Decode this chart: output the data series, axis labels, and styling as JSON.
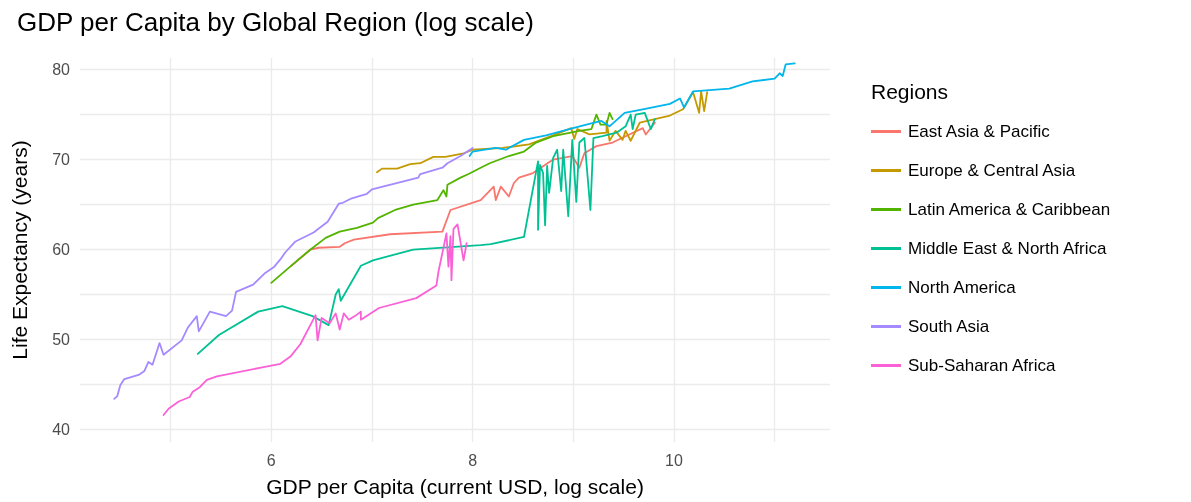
{
  "chart_data": {
    "type": "line",
    "title": "GDP per Capita by Global Region (log scale)",
    "xlabel": "GDP per Capita (current USD, log scale)",
    "ylabel": "Life Expectancy (years)",
    "legend_title": "Regions",
    "legend": "right",
    "grid": true,
    "marker": "none",
    "line_style": "solid",
    "xlim": [
      4.1,
      11.55
    ],
    "ylim": [
      38.6,
      81.3
    ],
    "xticks": [
      {
        "value": 5,
        "label": null
      },
      6,
      {
        "value": 7,
        "label": null
      },
      8,
      {
        "value": 9,
        "label": null
      },
      10,
      {
        "value": 11,
        "label": null
      }
    ],
    "yticks": [
      40,
      {
        "value": 45,
        "label": null
      },
      50,
      {
        "value": 55,
        "label": null
      },
      60,
      {
        "value": 65,
        "label": null
      },
      70,
      {
        "value": 75,
        "label": null
      },
      80
    ],
    "series": [
      {
        "name": "East Asia & Pacific",
        "color": "#f8766d",
        "x": [
          6.2,
          6.39,
          6.47,
          6.68,
          6.73,
          6.82,
          7.18,
          7.7,
          7.78,
          8.08,
          8.21,
          8.23,
          8.28,
          8.36,
          8.41,
          8.46,
          8.6,
          8.8,
          8.99,
          9.06,
          9.11,
          9.23,
          9.39,
          9.52,
          9.69,
          9.72,
          9.81
        ],
        "values": [
          58.2,
          60.0,
          60.2,
          60.3,
          60.7,
          61.1,
          61.7,
          62.0,
          64.4,
          65.5,
          67.0,
          65.5,
          67.0,
          65.9,
          67.4,
          68.0,
          68.5,
          70.0,
          70.4,
          69.1,
          70.7,
          71.5,
          71.9,
          72.6,
          73.5,
          72.8,
          74.1
        ]
      },
      {
        "name": "Europe & Central Asia",
        "color": "#c49a00",
        "x": [
          7.05,
          7.1,
          7.25,
          7.38,
          7.48,
          7.61,
          7.73,
          7.91,
          8.0,
          8.3,
          8.56,
          8.8,
          8.98,
          9.01,
          9.04,
          9.16,
          9.33,
          9.33,
          9.36,
          9.42,
          9.49,
          9.52,
          9.57,
          9.66,
          9.96,
          10.09,
          10.19,
          10.25,
          10.27,
          10.3,
          10.33
        ],
        "values": [
          68.6,
          69.0,
          69.0,
          69.5,
          69.6,
          70.3,
          70.3,
          70.7,
          71.1,
          71.3,
          71.7,
          72.7,
          73.5,
          72.3,
          73.4,
          72.8,
          73.0,
          74.3,
          72.1,
          73.2,
          72.2,
          73.2,
          72.1,
          74.1,
          74.9,
          75.6,
          77.5,
          75.2,
          77.6,
          75.4,
          77.5
        ]
      },
      {
        "name": "Latin America & Caribbean",
        "color": "#53b400",
        "x": [
          6.0,
          6.26,
          6.39,
          6.54,
          6.68,
          6.85,
          7.01,
          7.06,
          7.23,
          7.41,
          7.65,
          7.71,
          7.74,
          7.75,
          7.88,
          7.96,
          8.08,
          8.17,
          8.36,
          8.51,
          8.63,
          8.8,
          9.06,
          9.18,
          9.23,
          9.27,
          9.33,
          9.36,
          9.39
        ],
        "values": [
          56.3,
          58.8,
          60.0,
          61.3,
          62.0,
          62.4,
          63.0,
          63.5,
          64.4,
          65.0,
          65.5,
          66.6,
          65.9,
          67.2,
          68.0,
          68.4,
          69.1,
          69.6,
          70.4,
          70.9,
          71.9,
          72.6,
          73.2,
          73.4,
          75.0,
          73.9,
          73.9,
          75.2,
          74.5
        ]
      },
      {
        "name": "Middle East & North Africa",
        "color": "#00c094",
        "x": [
          5.27,
          5.48,
          5.87,
          6.11,
          6.41,
          6.57,
          6.64,
          6.67,
          6.69,
          6.89,
          7.01,
          7.41,
          8.08,
          8.18,
          8.51,
          8.65,
          8.65,
          8.67,
          8.7,
          8.72,
          8.74,
          8.76,
          8.8,
          8.84,
          8.88,
          8.9,
          8.95,
          8.99,
          9.03,
          9.06,
          9.11,
          9.17,
          9.2,
          9.29,
          9.43,
          9.52,
          9.57,
          9.59,
          9.62,
          9.71,
          9.77,
          9.81
        ],
        "values": [
          48.4,
          50.5,
          53.1,
          53.7,
          52.6,
          51.6,
          55.0,
          55.6,
          54.3,
          58.2,
          58.8,
          60.0,
          60.5,
          60.6,
          61.4,
          69.8,
          62.2,
          69.4,
          68.5,
          62.7,
          69.3,
          66.3,
          70.2,
          71.1,
          66.5,
          71.1,
          63.7,
          72.2,
          65.3,
          71.9,
          72.4,
          64.4,
          72.4,
          72.6,
          73.0,
          73.7,
          75.0,
          73.4,
          75.0,
          75.2,
          73.4,
          74.5
        ]
      },
      {
        "name": "North America",
        "color": "#00b6eb",
        "x": [
          7.97,
          8.0,
          8.23,
          8.33,
          8.51,
          8.73,
          8.96,
          9.13,
          9.28,
          9.36,
          9.51,
          9.69,
          9.96,
          10.06,
          10.1,
          10.19,
          10.55,
          10.78,
          11.0,
          11.05,
          11.08,
          11.11,
          11.2
        ],
        "values": [
          70.4,
          70.9,
          71.3,
          71.1,
          72.2,
          72.7,
          73.4,
          73.9,
          74.3,
          73.7,
          75.2,
          75.6,
          76.2,
          76.8,
          75.8,
          77.6,
          77.9,
          78.7,
          79.0,
          79.6,
          79.3,
          80.6,
          80.7
        ]
      },
      {
        "name": "South Asia",
        "color": "#a58aff",
        "x": [
          4.44,
          4.47,
          4.5,
          4.54,
          4.69,
          4.74,
          4.78,
          4.82,
          4.89,
          4.93,
          5.11,
          5.17,
          5.26,
          5.28,
          5.39,
          5.55,
          5.61,
          5.65,
          5.82,
          5.94,
          6.03,
          6.09,
          6.14,
          6.24,
          6.42,
          6.56,
          6.67,
          6.71,
          6.8,
          6.95,
          7.0,
          7.46,
          7.48,
          7.7,
          7.75,
          7.88,
          8.0
        ],
        "values": [
          43.4,
          43.7,
          44.9,
          45.6,
          46.1,
          46.5,
          47.5,
          47.2,
          49.6,
          48.3,
          49.9,
          51.3,
          52.6,
          50.9,
          53.1,
          52.6,
          53.2,
          55.3,
          56.1,
          57.4,
          58.1,
          58.9,
          59.7,
          60.9,
          61.9,
          63.1,
          65.1,
          65.2,
          65.7,
          66.2,
          66.7,
          68.0,
          68.4,
          69.1,
          69.6,
          70.4,
          71.3
        ]
      },
      {
        "name": "Sub-Saharan Africa",
        "color": "#fb61d7",
        "x": [
          4.93,
          4.98,
          5.08,
          5.19,
          5.22,
          5.29,
          5.36,
          5.46,
          5.91,
          6.09,
          6.19,
          6.29,
          6.44,
          6.46,
          6.5,
          6.58,
          6.64,
          6.68,
          6.72,
          6.77,
          6.83,
          6.89,
          6.89,
          7.07,
          7.44,
          7.64,
          7.66,
          7.74,
          7.76,
          7.78,
          7.79,
          7.81,
          7.85,
          7.91,
          7.94
        ],
        "values": [
          41.6,
          42.3,
          43.1,
          43.6,
          44.2,
          44.7,
          45.5,
          45.9,
          46.9,
          47.3,
          48.1,
          49.5,
          52.7,
          49.9,
          52.4,
          51.8,
          52.9,
          51.1,
          52.9,
          52.2,
          52.6,
          53.1,
          52.2,
          53.5,
          54.6,
          56.0,
          57.5,
          61.8,
          58.1,
          61.5,
          56.6,
          62.3,
          62.8,
          58.8,
          60.7
        ]
      }
    ]
  }
}
